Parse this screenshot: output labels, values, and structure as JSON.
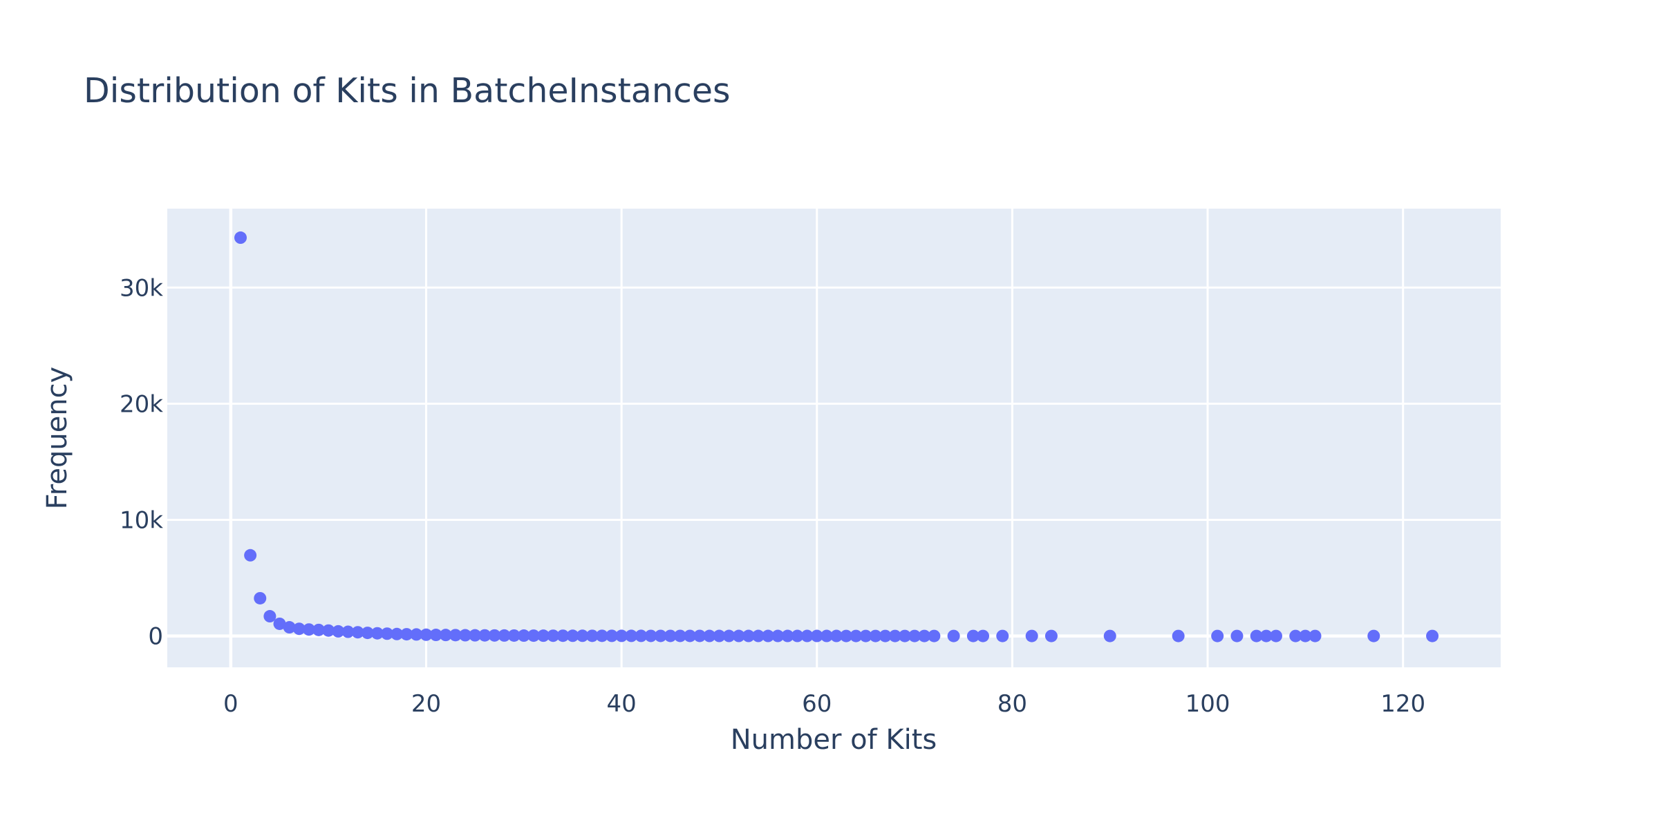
{
  "chart_data": {
    "type": "scatter",
    "title": "Distribution of Kits in BatcheInstances",
    "xlabel": "Number of Kits",
    "ylabel": "Frequency",
    "xlim": [
      -6.5,
      130
    ],
    "ylim": [
      -2700,
      36800
    ],
    "x_ticks": [
      0,
      20,
      40,
      60,
      80,
      100,
      120
    ],
    "x_tick_labels": [
      "0",
      "20",
      "40",
      "60",
      "80",
      "100",
      "120"
    ],
    "y_ticks": [
      0,
      10000,
      20000,
      30000
    ],
    "y_tick_labels": [
      "0",
      "10k",
      "20k",
      "30k"
    ],
    "grid": true,
    "legend": "none",
    "colors": {
      "marker": "#636efa",
      "plot_bg": "#e5ecf6",
      "text": "#2a3f5f",
      "grid": "#ffffff"
    },
    "series": [
      {
        "x": [
          1,
          2,
          3,
          4,
          5,
          6,
          7,
          8,
          9,
          10,
          11,
          12,
          13,
          14,
          15,
          16,
          17,
          18,
          19,
          20,
          21,
          22,
          23,
          24,
          25,
          26,
          27,
          28,
          29,
          30,
          31,
          32,
          33,
          34,
          35,
          36,
          37,
          38,
          39,
          40,
          41,
          42,
          43,
          44,
          45,
          46,
          47,
          48,
          49,
          50,
          51,
          52,
          53,
          54,
          55,
          56,
          57,
          58,
          59,
          60,
          61,
          62,
          63,
          64,
          65,
          66,
          67,
          68,
          69,
          70,
          71,
          72,
          74,
          76,
          77,
          79,
          82,
          84,
          90,
          97,
          101,
          103,
          105,
          106,
          107,
          109,
          110,
          111,
          117,
          123
        ],
        "y": [
          34300,
          6950,
          3250,
          1700,
          1050,
          750,
          620,
          560,
          520,
          470,
          400,
          360,
          320,
          270,
          230,
          200,
          170,
          150,
          130,
          110,
          95,
          85,
          75,
          65,
          58,
          52,
          47,
          42,
          38,
          34,
          30,
          27,
          25,
          22,
          20,
          18,
          16,
          15,
          14,
          13,
          12,
          11,
          10,
          9,
          8,
          8,
          7,
          7,
          6,
          6,
          5,
          5,
          5,
          4,
          4,
          4,
          4,
          3,
          3,
          3,
          3,
          3,
          2,
          2,
          2,
          2,
          2,
          2,
          2,
          2,
          1,
          1,
          1,
          1,
          1,
          1,
          1,
          1,
          1,
          1,
          1,
          1,
          1,
          1,
          1,
          1,
          1,
          1,
          1,
          1
        ]
      }
    ]
  }
}
